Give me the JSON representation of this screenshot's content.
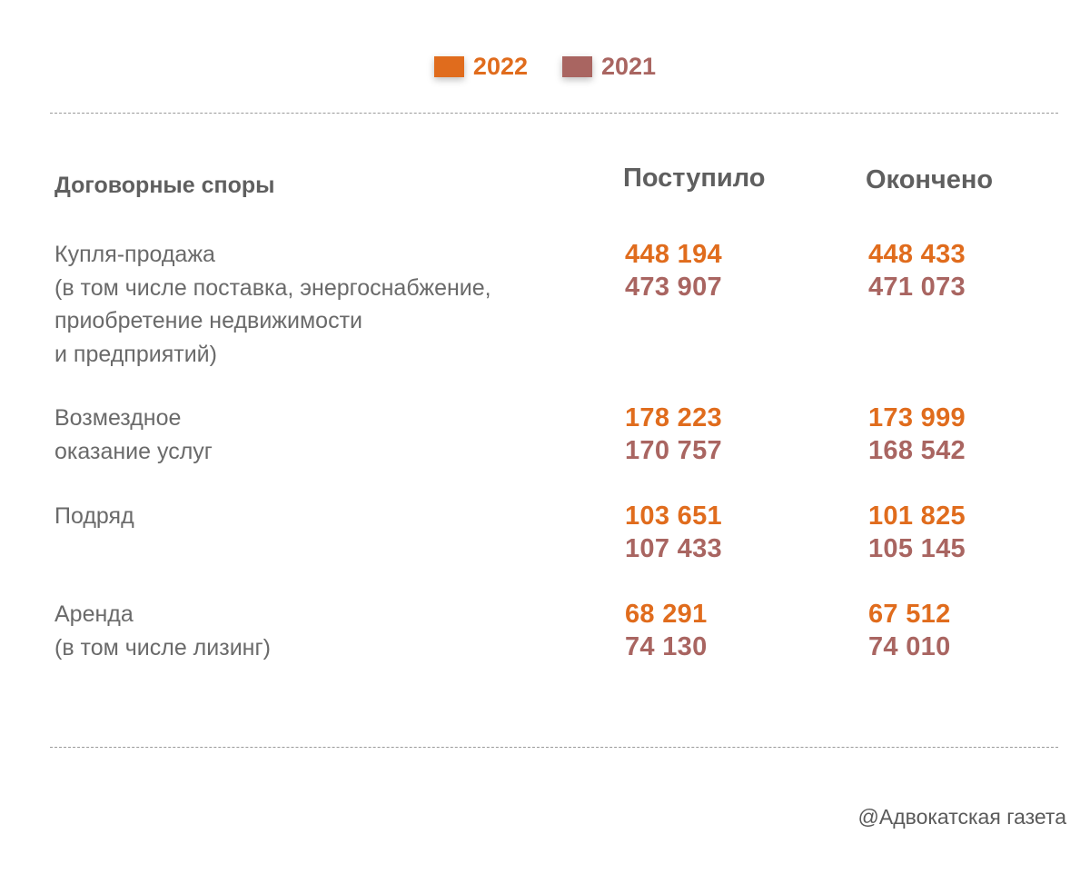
{
  "colors": {
    "y2022": "#e06c1d",
    "y2021": "#a96561"
  },
  "legend": [
    {
      "label": "2022",
      "color": "#e06c1d"
    },
    {
      "label": "2021",
      "color": "#a96561"
    }
  ],
  "headers": {
    "category": "Договорные споры",
    "received": "Поступило",
    "finished": "Окончено"
  },
  "source": "@Адвокатская газета",
  "chart_data": {
    "type": "table",
    "title": "",
    "columns": [
      "Договорные споры",
      "Поступило",
      "Окончено"
    ],
    "series": [
      {
        "name": "2022"
      },
      {
        "name": "2021"
      }
    ],
    "rows": [
      {
        "category": "Купля-продажа\n(в том числе поставка, энергоснабжение,\nприобретение недвижимости\nи предприятий)",
        "received": {
          "2022": "448 194",
          "2021": "473 907"
        },
        "finished": {
          "2022": "448 433",
          "2021": "471 073"
        }
      },
      {
        "category": "Возмездное\nоказание услуг",
        "received": {
          "2022": "178 223",
          "2021": "170 757"
        },
        "finished": {
          "2022": "173 999",
          "2021": "168 542"
        }
      },
      {
        "category": "Подряд",
        "received": {
          "2022": "103 651",
          "2021": "107 433"
        },
        "finished": {
          "2022": "101 825",
          "2021": "105 145"
        }
      },
      {
        "category": "Аренда\n(в том числе лизинг)",
        "received": {
          "2022": "68 291",
          "2021": "74 130"
        },
        "finished": {
          "2022": "67 512",
          "2021": "74 010"
        }
      }
    ]
  }
}
